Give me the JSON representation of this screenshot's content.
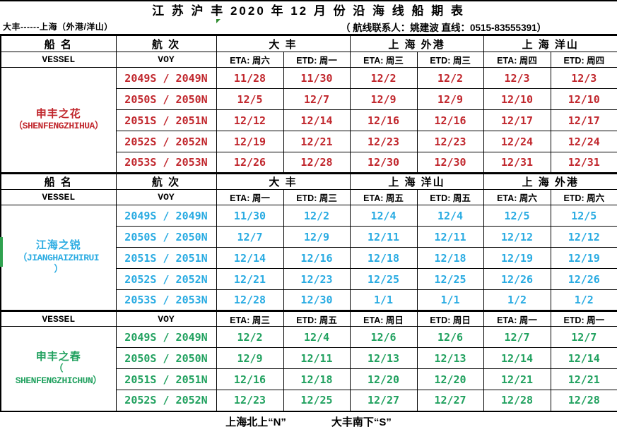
{
  "title": "江 苏 沪 丰 2020 年 12 月 份 沿 海 线 船 期 表",
  "subheader": {
    "route": "大丰------上海（外港/洋山）",
    "contact": "（ 航线联系人：姚建波 直线：0515-83555391）"
  },
  "columns": {
    "vessel_cn": "船  名",
    "voy_cn": "航  次",
    "vessel_en": "VESSEL",
    "voy_en": "VOY"
  },
  "colors": {
    "section1": "#c1272d",
    "section2": "#29abe2",
    "section3": "#21a15f",
    "text": "#000000",
    "marker_green": "#2e8b2e"
  },
  "sections": [
    {
      "vessel_lines": [
        "申丰之花",
        "（SHENFENGZHIHUA）"
      ],
      "color": "#c1272d",
      "ports": [
        "大  丰",
        "上 海 外港",
        "上 海 洋山"
      ],
      "day_headers": [
        "ETA: 周六",
        "ETD: 周一",
        "ETA: 周三",
        "ETD: 周三",
        "ETA: 周四",
        "ETD: 周四"
      ],
      "rows": [
        {
          "voy": "2049S / 2049N",
          "dates": [
            "11/28",
            "11/30",
            "12/2",
            "12/2",
            "12/3",
            "12/3"
          ]
        },
        {
          "voy": "2050S / 2050N",
          "dates": [
            "12/5",
            "12/7",
            "12/9",
            "12/9",
            "12/10",
            "12/10"
          ]
        },
        {
          "voy": "2051S / 2051N",
          "dates": [
            "12/12",
            "12/14",
            "12/16",
            "12/16",
            "12/17",
            "12/17"
          ]
        },
        {
          "voy": "2052S / 2052N",
          "dates": [
            "12/19",
            "12/21",
            "12/23",
            "12/23",
            "12/24",
            "12/24"
          ]
        },
        {
          "voy": "2053S / 2053N",
          "dates": [
            "12/26",
            "12/28",
            "12/30",
            "12/30",
            "12/31",
            "12/31"
          ]
        }
      ]
    },
    {
      "vessel_lines": [
        "江海之锐",
        "（JIANGHAIZHIRUI",
        "）"
      ],
      "color": "#29abe2",
      "ports": [
        "大  丰",
        "上 海 洋山",
        "上 海 外港"
      ],
      "day_headers": [
        "ETA: 周一",
        "ETD: 周三",
        "ETA: 周五",
        "ETD: 周五",
        "ETA: 周六",
        "ETD: 周六"
      ],
      "rows": [
        {
          "voy": "2049S / 2049N",
          "dates": [
            "11/30",
            "12/2",
            "12/4",
            "12/4",
            "12/5",
            "12/5"
          ]
        },
        {
          "voy": "2050S / 2050N",
          "dates": [
            "12/7",
            "12/9",
            "12/11",
            "12/11",
            "12/12",
            "12/12"
          ]
        },
        {
          "voy": "2051S / 2051N",
          "dates": [
            "12/14",
            "12/16",
            "12/18",
            "12/18",
            "12/19",
            "12/19"
          ]
        },
        {
          "voy": "2052S / 2052N",
          "dates": [
            "12/21",
            "12/23",
            "12/25",
            "12/25",
            "12/26",
            "12/26"
          ]
        },
        {
          "voy": "2053S / 2053N",
          "dates": [
            "12/28",
            "12/30",
            "1/1",
            "1/1",
            "1/2",
            "1/2"
          ]
        }
      ]
    },
    {
      "vessel_lines": [
        "申丰之春",
        "（",
        "SHENFENGZHICHUN）"
      ],
      "color": "#21a15f",
      "ports": null,
      "day_headers": [
        "ETA: 周三",
        "ETD: 周五",
        "ETA: 周日",
        "ETD: 周日",
        "ETA: 周一",
        "ETD: 周一"
      ],
      "rows": [
        {
          "voy": "2049S / 2049N",
          "dates": [
            "12/2",
            "12/4",
            "12/6",
            "12/6",
            "12/7",
            "12/7"
          ]
        },
        {
          "voy": "2050S / 2050N",
          "dates": [
            "12/9",
            "12/11",
            "12/13",
            "12/13",
            "12/14",
            "12/14"
          ]
        },
        {
          "voy": "2051S / 2051N",
          "dates": [
            "12/16",
            "12/18",
            "12/20",
            "12/20",
            "12/21",
            "12/21"
          ]
        },
        {
          "voy": "2052S / 2052N",
          "dates": [
            "12/23",
            "12/25",
            "12/27",
            "12/27",
            "12/28",
            "12/28"
          ]
        }
      ]
    }
  ],
  "footer": {
    "north": "上海北上“N”",
    "south": "大丰南下“S”"
  }
}
